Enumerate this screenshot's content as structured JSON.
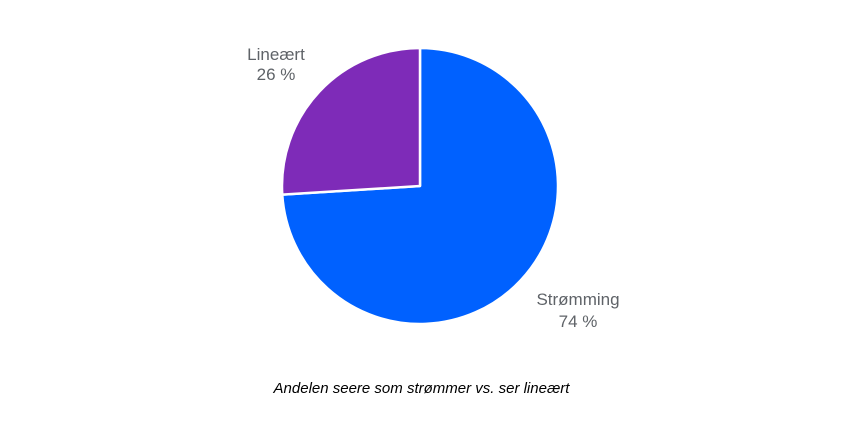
{
  "chart_data": {
    "type": "pie",
    "slices": [
      {
        "label": "Strømming",
        "value": 74,
        "value_label": "74 %",
        "color": "#0061ff"
      },
      {
        "label": "Lineært",
        "value": 26,
        "value_label": "26 %",
        "color": "#7e2bb8"
      }
    ],
    "start_angle_deg": 0,
    "direction": "clockwise",
    "caption": "Andelen seere som strømmer vs. ser lineært"
  }
}
